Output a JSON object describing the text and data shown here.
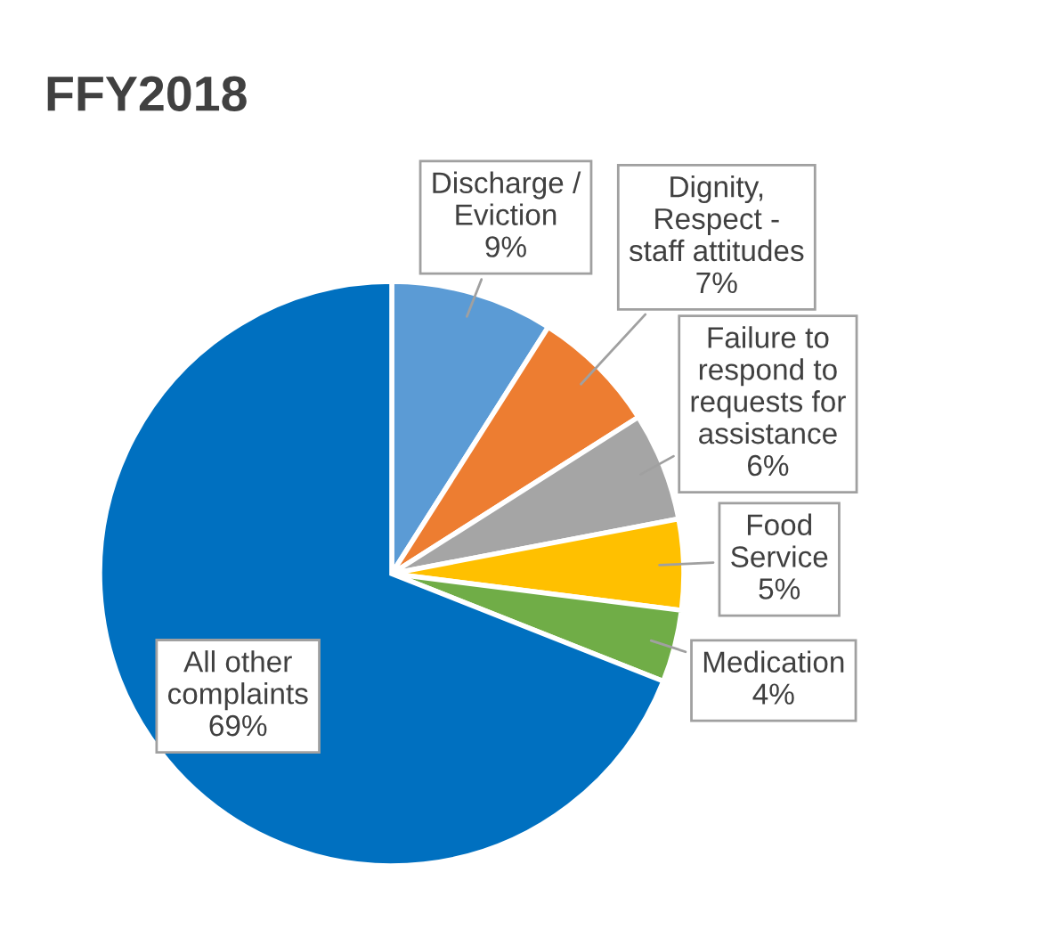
{
  "chart_data": {
    "type": "pie",
    "title": "FFY2018",
    "categories": [
      "Discharge /\nEviction",
      "Dignity,\nRespect -\nstaff attitudes",
      "Failure to\nrespond to\nrequests for\nassistance",
      "Food\nService",
      "Medication",
      "All other\ncomplaints"
    ],
    "values": [
      9,
      7,
      6,
      5,
      4,
      69
    ],
    "value_labels": [
      "9%",
      "7%",
      "6%",
      "5%",
      "4%",
      "69%"
    ],
    "colors": [
      "#5b9bd5",
      "#ed7d31",
      "#a5a5a5",
      "#ffc000",
      "#70ad47",
      "#0070c0"
    ]
  }
}
